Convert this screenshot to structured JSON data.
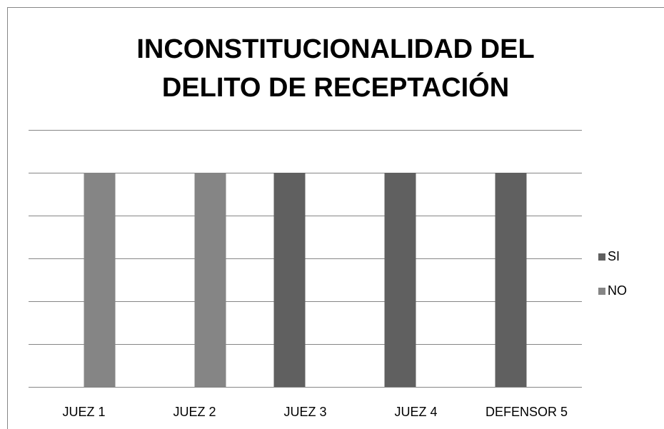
{
  "chart_data": {
    "type": "bar",
    "title": "INCONSTITUCIONALIDAD DEL DELITO DE RECEPTACIÓN",
    "categories": [
      "JUEZ 1",
      "JUEZ 2",
      "JUEZ 3",
      "JUEZ 4",
      "DEFENSOR 5"
    ],
    "series": [
      {
        "name": "SI",
        "color": "#606060",
        "values": [
          0,
          0,
          5,
          5,
          5
        ]
      },
      {
        "name": "NO",
        "color": "#858585",
        "values": [
          5,
          5,
          0,
          0,
          0
        ]
      }
    ],
    "ylim": [
      0,
      6
    ],
    "yticks": [
      0,
      1,
      2,
      3,
      4,
      5,
      6
    ],
    "grid": true,
    "legend": "right"
  }
}
